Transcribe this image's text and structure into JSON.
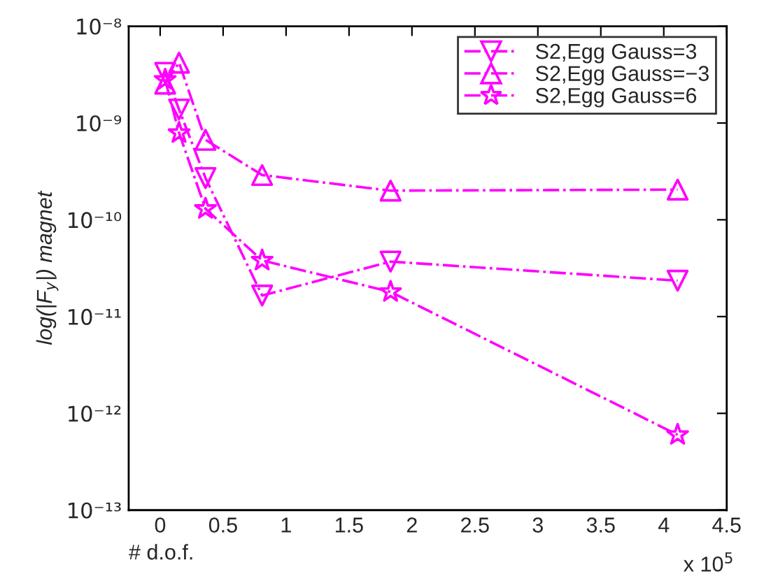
{
  "chart_data": {
    "type": "line",
    "xlabel": "# d.o.f.",
    "ylabel": "log(|F$_{y}$|) magnet",
    "log": "y",
    "xlim": [
      -0.25,
      4.5
    ],
    "xticks": [
      0,
      0.5,
      1,
      1.5,
      2,
      2.5,
      3,
      3.5,
      4,
      4.5
    ],
    "ylim": [
      1e-13,
      1e-08
    ],
    "yticks": [
      {
        "value": 1e-13,
        "label": "10⁻¹³"
      },
      {
        "value": 1e-12,
        "label": "10⁻¹²"
      },
      {
        "value": 1e-11,
        "label": "10⁻¹¹"
      },
      {
        "value": 1e-10,
        "label": "10⁻¹⁰"
      },
      {
        "value": 1e-09,
        "label": "10⁻⁹"
      },
      {
        "value": 1e-08,
        "label": "10⁻⁸"
      }
    ],
    "grid": false,
    "legend": "top right",
    "line_style": "dashdot",
    "annotations": [
      "x 10$^{5}$"
    ],
    "x": [
      0.04,
      0.15,
      0.36,
      0.81,
      1.83,
      4.11
    ],
    "series": [
      {
        "name": "S2,Egg Gauss=3",
        "color": "#ff00ff",
        "marker": "triangle_down",
        "values": [
          3.3e-09,
          1.38e-09,
          2.7e-10,
          1.65e-11,
          3.7e-11,
          2.35e-11
        ]
      },
      {
        "name": "S2,Egg Gauss=−3",
        "color": "#ff00ff",
        "marker": "triangle",
        "values": [
          2.55e-09,
          4.2e-09,
          6.7e-10,
          2.9e-10,
          2e-10,
          2.05e-10
        ]
      },
      {
        "name": "S2,Egg Gauss=6",
        "color": "#ff00ff",
        "marker": "star",
        "values": [
          2.8e-09,
          7.9e-10,
          1.3e-10,
          3.8e-11,
          1.8e-11,
          6e-13
        ]
      }
    ]
  }
}
